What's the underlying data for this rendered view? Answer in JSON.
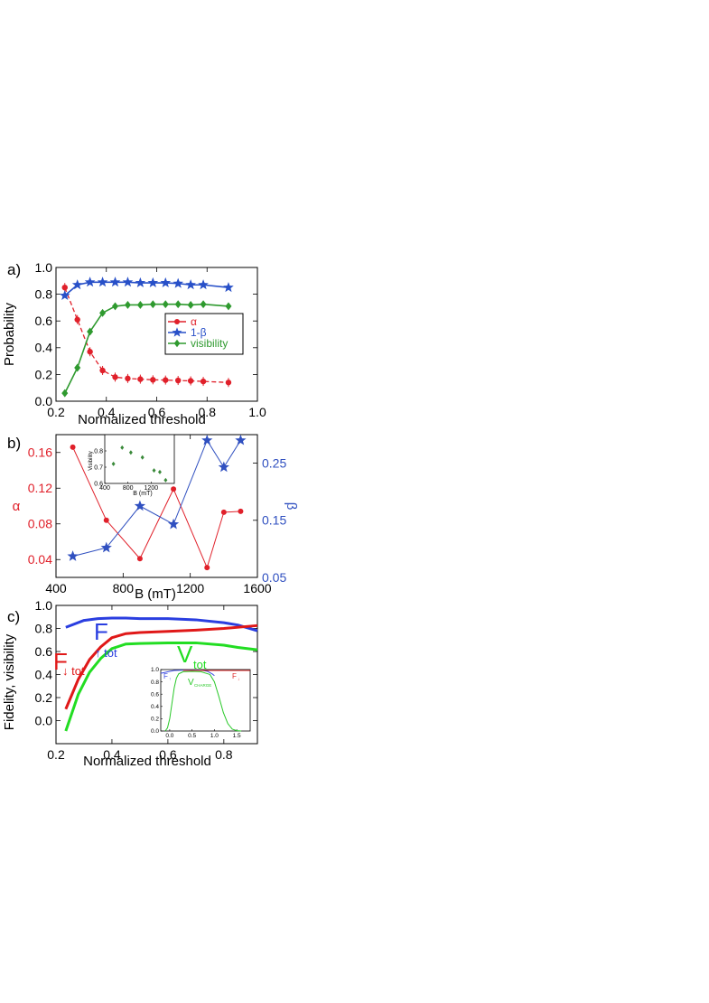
{
  "chart_data": [
    {
      "panel_label": "a)",
      "type": "line",
      "xlabel": "Normalized threshold",
      "ylabel": "Probability",
      "xlim": [
        0.2,
        1.0
      ],
      "ylim": [
        0.0,
        1.0
      ],
      "xticks": [
        "0.2",
        "0.4",
        "0.6",
        "0.8",
        "1.0"
      ],
      "yticks": [
        "0.0",
        "0.2",
        "0.4",
        "0.6",
        "0.8",
        "1.0"
      ],
      "legend_position": "center-right",
      "series": [
        {
          "name": "α",
          "color": "#e0202a",
          "marker": "circle",
          "dashed": true,
          "x": [
            0.235,
            0.285,
            0.335,
            0.385,
            0.435,
            0.485,
            0.535,
            0.585,
            0.635,
            0.685,
            0.735,
            0.785,
            0.885
          ],
          "y": [
            0.85,
            0.61,
            0.37,
            0.23,
            0.18,
            0.17,
            0.165,
            0.16,
            0.158,
            0.155,
            0.152,
            0.148,
            0.14
          ]
        },
        {
          "name": "1-β",
          "color": "#2850c8",
          "marker": "star",
          "dashed": false,
          "x": [
            0.235,
            0.285,
            0.335,
            0.385,
            0.435,
            0.485,
            0.535,
            0.585,
            0.635,
            0.685,
            0.735,
            0.785,
            0.885
          ],
          "y": [
            0.79,
            0.87,
            0.89,
            0.89,
            0.89,
            0.89,
            0.885,
            0.885,
            0.885,
            0.88,
            0.87,
            0.87,
            0.85
          ]
        },
        {
          "name": "visibility",
          "color": "#2f9a2f",
          "marker": "diamond",
          "dashed": false,
          "x": [
            0.235,
            0.285,
            0.335,
            0.385,
            0.435,
            0.485,
            0.535,
            0.585,
            0.635,
            0.685,
            0.735,
            0.785,
            0.885
          ],
          "y": [
            0.06,
            0.25,
            0.52,
            0.66,
            0.71,
            0.72,
            0.72,
            0.725,
            0.725,
            0.725,
            0.72,
            0.725,
            0.71
          ]
        }
      ]
    },
    {
      "panel_label": "b)",
      "type": "line",
      "xlabel": "B (mT)",
      "ylabel_left": "α",
      "ylabel_right": "β",
      "xlim": [
        400,
        1600
      ],
      "ylim_left": [
        0.02,
        0.18
      ],
      "ylim_right": [
        0.05,
        0.3
      ],
      "xticks": [
        "400",
        "800",
        "1200",
        "1600"
      ],
      "yticks_left": [
        "0.04",
        "0.08",
        "0.12",
        "0.16"
      ],
      "yticks_right": [
        "0.05",
        "0.15",
        "0.25"
      ],
      "series": [
        {
          "name": "α",
          "axis": "left",
          "color": "#e0202a",
          "marker": "circle",
          "x": [
            500,
            700,
            900,
            1100,
            1300,
            1400,
            1500
          ],
          "y": [
            0.166,
            0.084,
            0.041,
            0.119,
            0.031,
            0.093,
            0.094
          ]
        },
        {
          "name": "β",
          "axis": "right",
          "color": "#3050c0",
          "marker": "star",
          "x": [
            500,
            700,
            900,
            1100,
            1300,
            1400,
            1500
          ],
          "y": [
            0.087,
            0.102,
            0.175,
            0.143,
            0.29,
            0.243,
            0.29
          ]
        }
      ],
      "inset": {
        "type": "scatter",
        "xlabel": "B (mT)",
        "ylabel": "Visibility",
        "xlim": [
          400,
          1600
        ],
        "ylim": [
          0.6,
          0.9
        ],
        "xticks": [
          "400",
          "800",
          "1200"
        ],
        "yticks": [
          "0.6",
          "0.7",
          "0.8"
        ],
        "color": "#3a8a3a",
        "x": [
          550,
          700,
          850,
          1050,
          1250,
          1350,
          1450
        ],
        "y": [
          0.72,
          0.82,
          0.79,
          0.76,
          0.68,
          0.67,
          0.62
        ]
      }
    },
    {
      "panel_label": "c)",
      "type": "line",
      "xlabel": "Normalized threshold",
      "ylabel": "Fidelity, visibility",
      "xlim": [
        0.2,
        0.92
      ],
      "ylim": [
        -0.2,
        1.0
      ],
      "xticks": [
        "0.2",
        "0.4",
        "0.6",
        "0.8"
      ],
      "yticks": [
        "0.0",
        "0.2",
        "0.4",
        "0.6",
        "0.8",
        "1.0"
      ],
      "series": [
        {
          "name": "F↑tot",
          "label_main": "F",
          "label_sub": "↑ tot",
          "color": "#2a3ee0",
          "x": [
            0.235,
            0.3,
            0.35,
            0.4,
            0.45,
            0.5,
            0.6,
            0.7,
            0.8,
            0.85,
            0.92
          ],
          "y": [
            0.81,
            0.87,
            0.885,
            0.89,
            0.89,
            0.885,
            0.885,
            0.875,
            0.85,
            0.83,
            0.78
          ]
        },
        {
          "name": "F↓tot",
          "label_main": "F",
          "label_sub": "↓ tot",
          "color": "#e01818",
          "x": [
            0.235,
            0.28,
            0.32,
            0.36,
            0.4,
            0.45,
            0.5,
            0.6,
            0.7,
            0.8,
            0.92
          ],
          "y": [
            0.1,
            0.36,
            0.53,
            0.64,
            0.72,
            0.755,
            0.765,
            0.775,
            0.785,
            0.8,
            0.825
          ]
        },
        {
          "name": "Vtot",
          "label_main": "V",
          "label_sub": "tot",
          "color": "#22dd22",
          "x": [
            0.235,
            0.28,
            0.32,
            0.36,
            0.4,
            0.45,
            0.5,
            0.6,
            0.7,
            0.8,
            0.85,
            0.92
          ],
          "y": [
            -0.09,
            0.23,
            0.42,
            0.54,
            0.625,
            0.665,
            0.67,
            0.675,
            0.675,
            0.655,
            0.635,
            0.615
          ]
        }
      ],
      "inset": {
        "type": "line",
        "xlim": [
          -0.2,
          1.8
        ],
        "ylim": [
          0.0,
          1.0
        ],
        "xticks": [
          "0.0",
          "0.5",
          "1.0",
          "1.5"
        ],
        "yticks": [
          "0.0",
          "0.2",
          "0.4",
          "0.6",
          "0.8",
          "1.0"
        ],
        "labels": {
          "f_up": {
            "main": "F",
            "sub": "↑"
          },
          "f_down": {
            "main": "F",
            "sub": "↓"
          },
          "v_charge": {
            "main": "V",
            "sub": "CHARGE"
          }
        },
        "series": [
          {
            "name": "F↑",
            "color": "#3a4ae0",
            "x": [
              -0.2,
              0.0,
              0.1,
              0.3,
              0.5,
              0.7,
              0.85,
              0.95,
              1.0
            ],
            "y": [
              0.94,
              0.97,
              0.985,
              0.99,
              0.99,
              0.99,
              0.97,
              0.93,
              0.9
            ]
          },
          {
            "name": "F↓",
            "color": "#e02828",
            "x": [
              0.3,
              0.6,
              0.9,
              1.2,
              1.5,
              1.8
            ],
            "y": [
              0.985,
              0.985,
              0.985,
              0.985,
              0.985,
              0.985
            ]
          },
          {
            "name": "V_CHARGE",
            "color": "#28c828",
            "x": [
              -0.1,
              -0.05,
              0.0,
              0.05,
              0.1,
              0.15,
              0.2,
              0.3,
              0.5,
              0.7,
              0.9,
              1.0,
              1.1,
              1.2,
              1.3,
              1.4,
              1.5,
              1.6
            ],
            "y": [
              0.0,
              0.05,
              0.2,
              0.45,
              0.7,
              0.86,
              0.93,
              0.965,
              0.97,
              0.965,
              0.92,
              0.8,
              0.56,
              0.3,
              0.12,
              0.03,
              0.005,
              0.0
            ]
          }
        ]
      }
    }
  ]
}
